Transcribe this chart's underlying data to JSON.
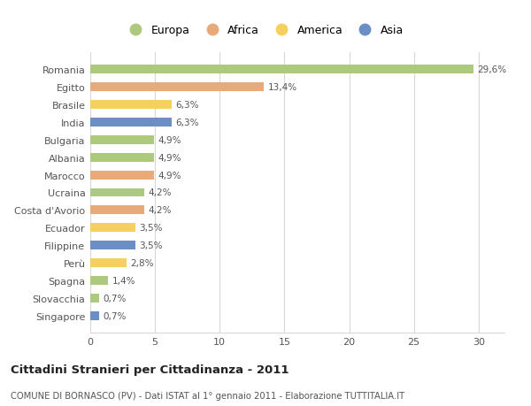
{
  "countries": [
    "Romania",
    "Egitto",
    "Brasile",
    "India",
    "Bulgaria",
    "Albania",
    "Marocco",
    "Ucraina",
    "Costa d'Avorio",
    "Ecuador",
    "Filippine",
    "Perù",
    "Spagna",
    "Slovacchia",
    "Singapore"
  ],
  "values": [
    29.6,
    13.4,
    6.3,
    6.3,
    4.9,
    4.9,
    4.9,
    4.2,
    4.2,
    3.5,
    3.5,
    2.8,
    1.4,
    0.7,
    0.7
  ],
  "labels": [
    "29,6%",
    "13,4%",
    "6,3%",
    "6,3%",
    "4,9%",
    "4,9%",
    "4,9%",
    "4,2%",
    "4,2%",
    "3,5%",
    "3,5%",
    "2,8%",
    "1,4%",
    "0,7%",
    "0,7%"
  ],
  "continents": [
    "Europa",
    "Africa",
    "America",
    "Asia",
    "Europa",
    "Europa",
    "Africa",
    "Europa",
    "Africa",
    "America",
    "Asia",
    "America",
    "Europa",
    "Europa",
    "Asia"
  ],
  "colors": {
    "Europa": "#adc97e",
    "Africa": "#e8aa78",
    "America": "#f5d060",
    "Asia": "#6b8ec4"
  },
  "legend_order": [
    "Europa",
    "Africa",
    "America",
    "Asia"
  ],
  "title": "Cittadini Stranieri per Cittadinanza - 2011",
  "subtitle": "COMUNE DI BORNASCO (PV) - Dati ISTAT al 1° gennaio 2011 - Elaborazione TUTTITALIA.IT",
  "xlim": [
    0,
    32
  ],
  "xticks": [
    0,
    5,
    10,
    15,
    20,
    25,
    30
  ],
  "bg_color": "#ffffff",
  "grid_color": "#d8d8d8",
  "bar_height": 0.5
}
